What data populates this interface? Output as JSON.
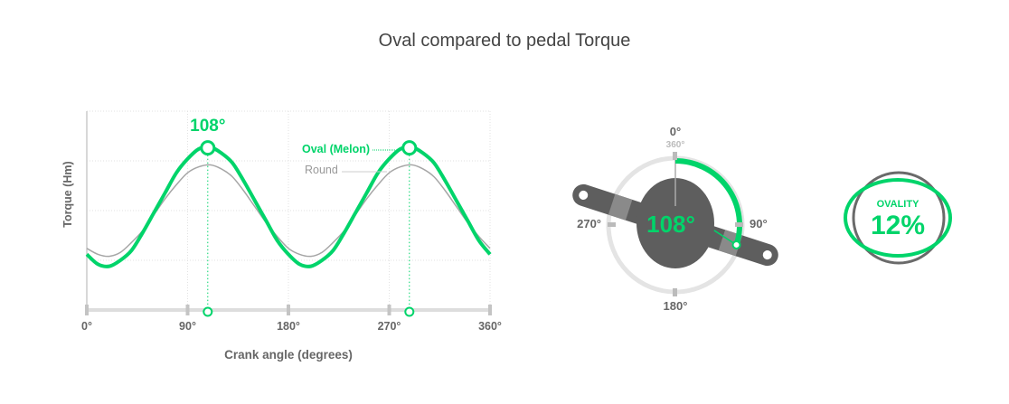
{
  "title": "Oval compared to pedal Torque",
  "colors": {
    "oval": "#00d46a",
    "round": "#a6a6a6",
    "dark": "#5e5e5e",
    "text": "#666666",
    "grid": "#dddddd"
  },
  "chart_data": {
    "type": "line",
    "title": "Oval compared to pedal Torque",
    "xlabel": "Crank angle (degrees)",
    "ylabel": "Torque (Hm)",
    "xlim": [
      0,
      360
    ],
    "ylim": [
      0,
      100
    ],
    "grid": true,
    "xticks": [
      0,
      90,
      180,
      270,
      360
    ],
    "xtick_labels": [
      "0°",
      "90°",
      "180°",
      "270°",
      "360°"
    ],
    "x": [
      0,
      10,
      20,
      30,
      40,
      50,
      60,
      70,
      80,
      90,
      100,
      110,
      120,
      130,
      140,
      150,
      160,
      170,
      180,
      190,
      200,
      210,
      220,
      230,
      240,
      250,
      260,
      270,
      280,
      290,
      300,
      310,
      320,
      330,
      340,
      350,
      360
    ],
    "series": [
      {
        "name": "Oval (Melon)",
        "color": "#00d46a",
        "values": [
          28,
          23,
          22,
          25,
          30,
          39,
          49,
          59,
          69,
          76,
          81,
          82,
          79,
          74,
          65,
          55,
          45,
          35,
          28,
          23,
          22,
          25,
          30,
          39,
          49,
          59,
          69,
          76,
          81,
          82,
          79,
          74,
          65,
          55,
          45,
          35,
          28
        ]
      },
      {
        "name": "Round",
        "color": "#a6a6a6",
        "values": [
          31,
          28,
          27,
          29,
          34,
          40,
          48,
          56,
          63,
          69,
          72,
          73,
          71,
          67,
          60,
          52,
          44,
          37,
          31,
          28,
          27,
          29,
          34,
          40,
          48,
          56,
          63,
          69,
          72,
          73,
          71,
          67,
          60,
          52,
          44,
          37,
          31
        ]
      }
    ],
    "peak_markers": [
      108,
      288
    ],
    "peak_label": "108°"
  },
  "gauge": {
    "angle": 108,
    "angle_label": "108°",
    "labels": {
      "top": "0°",
      "top_alt": "360°",
      "right": "90°",
      "bottom": "180°",
      "left": "270°"
    }
  },
  "ovality": {
    "label": "OVALITY",
    "value": "12%"
  }
}
